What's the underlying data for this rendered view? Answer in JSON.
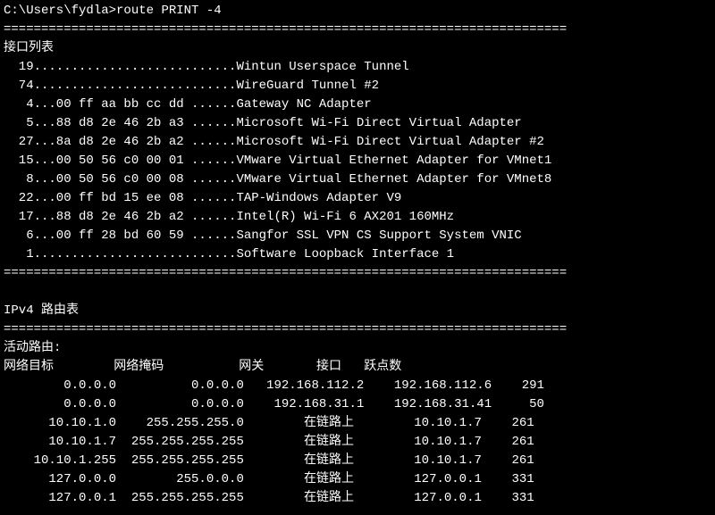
{
  "prompt": {
    "path": "C:\\Users\\fydla>",
    "command": "route PRINT -4"
  },
  "divider": "===========================================================================",
  "section_interfaces_title": "接口列表",
  "interfaces": [
    {
      "num": "19",
      "mac": "",
      "name": "Wintun Userspace Tunnel"
    },
    {
      "num": "74",
      "mac": "",
      "name": "WireGuard Tunnel #2"
    },
    {
      "num": " 4",
      "mac": "00 ff aa bb cc dd",
      "name": "Gateway NC Adapter"
    },
    {
      "num": " 5",
      "mac": "88 d8 2e 46 2b a3",
      "name": "Microsoft Wi-Fi Direct Virtual Adapter"
    },
    {
      "num": "27",
      "mac": "8a d8 2e 46 2b a2",
      "name": "Microsoft Wi-Fi Direct Virtual Adapter #2"
    },
    {
      "num": "15",
      "mac": "00 50 56 c0 00 01",
      "name": "VMware Virtual Ethernet Adapter for VMnet1"
    },
    {
      "num": " 8",
      "mac": "00 50 56 c0 00 08",
      "name": "VMware Virtual Ethernet Adapter for VMnet8"
    },
    {
      "num": "22",
      "mac": "00 ff bd 15 ee 08",
      "name": "TAP-Windows Adapter V9"
    },
    {
      "num": "17",
      "mac": "88 d8 2e 46 2b a2",
      "name": "Intel(R) Wi-Fi 6 AX201 160MHz"
    },
    {
      "num": " 6",
      "mac": "00 ff 28 bd 60 59",
      "name": "Sangfor SSL VPN CS Support System VNIC"
    },
    {
      "num": " 1",
      "mac": "",
      "name": "Software Loopback Interface 1"
    }
  ],
  "route_table_title": "IPv4 路由表",
  "active_routes_label": "活动路由:",
  "route_headers": {
    "dest": "网络目标",
    "mask": "网络掩码",
    "gateway": "网关",
    "iface": "接口",
    "metric": "跃点数"
  },
  "routes": [
    {
      "dest": "0.0.0.0",
      "mask": "0.0.0.0",
      "gateway": "192.168.112.2",
      "iface": "192.168.112.6",
      "metric": "291"
    },
    {
      "dest": "0.0.0.0",
      "mask": "0.0.0.0",
      "gateway": "192.168.31.1",
      "iface": "192.168.31.41",
      "metric": "50"
    },
    {
      "dest": "10.10.1.0",
      "mask": "255.255.255.0",
      "gateway": "在链路上",
      "iface": "10.10.1.7",
      "metric": "261"
    },
    {
      "dest": "10.10.1.7",
      "mask": "255.255.255.255",
      "gateway": "在链路上",
      "iface": "10.10.1.7",
      "metric": "261"
    },
    {
      "dest": "10.10.1.255",
      "mask": "255.255.255.255",
      "gateway": "在链路上",
      "iface": "10.10.1.7",
      "metric": "261"
    },
    {
      "dest": "127.0.0.0",
      "mask": "255.0.0.0",
      "gateway": "在链路上",
      "iface": "127.0.0.1",
      "metric": "331"
    },
    {
      "dest": "127.0.0.1",
      "mask": "255.255.255.255",
      "gateway": "在链路上",
      "iface": "127.0.0.1",
      "metric": "331"
    }
  ],
  "colors": {
    "bg": "#000000",
    "fg": "#ffffff"
  },
  "layout": {
    "col_dest_w": 15,
    "col_mask_w": 17,
    "col_gw_w": 16,
    "col_iface_w": 17,
    "col_metric_w": 7
  }
}
